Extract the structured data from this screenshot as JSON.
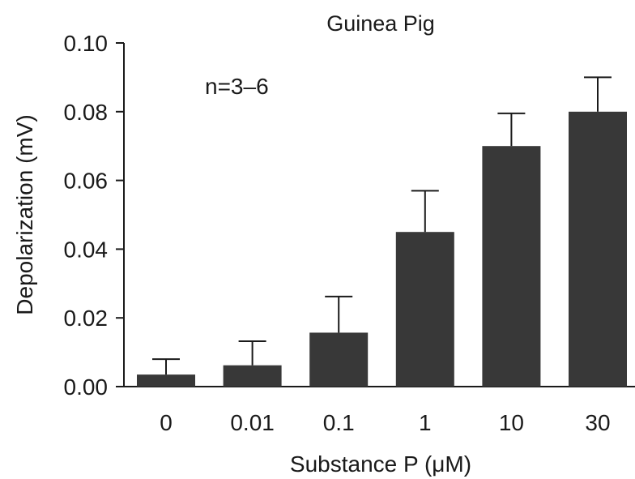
{
  "chart_data": {
    "type": "bar",
    "title": "Guinea Pig",
    "annotation": "n=3–6",
    "xlabel": "Substance P (μM)",
    "ylabel": "Depolarization (mV)",
    "categories": [
      "0",
      "0.01",
      "0.1",
      "1",
      "10",
      "30"
    ],
    "values": [
      0.0035,
      0.0062,
      0.0157,
      0.045,
      0.07,
      0.08
    ],
    "errors": [
      0.0045,
      0.007,
      0.0105,
      0.012,
      0.0095,
      0.01
    ],
    "ylim": [
      0,
      0.1
    ],
    "yticks": [
      "0.00",
      "0.02",
      "0.04",
      "0.06",
      "0.08",
      "0.10"
    ],
    "bar_color": "#383838",
    "grid": false
  }
}
